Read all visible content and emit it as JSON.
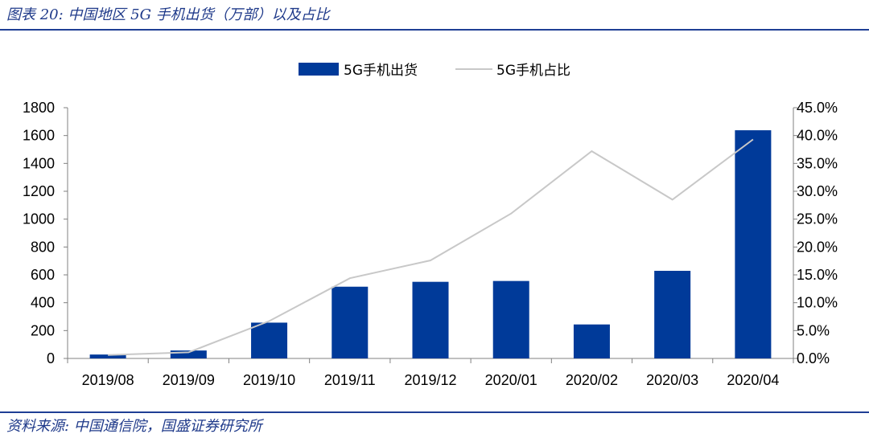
{
  "header": {
    "title": "图表 20:  中国地区 5G 手机出货（万部）以及占比"
  },
  "footer": {
    "source": "资料来源:  中国通信院，国盛证券研究所"
  },
  "colors": {
    "bar": "#003a99",
    "line": "#c8c8c8",
    "axis": "#808080",
    "rule": "#1f3f95",
    "heading": "#1f3a8a"
  },
  "chart_data": {
    "type": "bar",
    "categories": [
      "2019/08",
      "2019/09",
      "2019/10",
      "2019/11",
      "2019/12",
      "2020/01",
      "2020/02",
      "2020/03",
      "2020/04"
    ],
    "series": [
      {
        "name": "5G手机出货",
        "type": "bar",
        "axis": "left",
        "values": [
          28,
          57,
          257,
          515,
          550,
          556,
          244,
          629,
          1638
        ]
      },
      {
        "name": "5G手机占比",
        "type": "line",
        "axis": "right",
        "values": [
          0.6,
          1.1,
          6.7,
          14.4,
          17.6,
          26.0,
          37.2,
          28.5,
          39.3
        ]
      }
    ],
    "y_left": {
      "min": 0,
      "max": 1800,
      "ticks": [
        "0",
        "200",
        "400",
        "600",
        "800",
        "1000",
        "1200",
        "1400",
        "1600",
        "1800"
      ]
    },
    "y_right": {
      "min": 0,
      "max": 45,
      "ticks": [
        "0.0%",
        "5.0%",
        "10.0%",
        "15.0%",
        "20.0%",
        "25.0%",
        "30.0%",
        "35.0%",
        "40.0%",
        "45.0%"
      ]
    },
    "grid": false,
    "legend": "top-center"
  }
}
